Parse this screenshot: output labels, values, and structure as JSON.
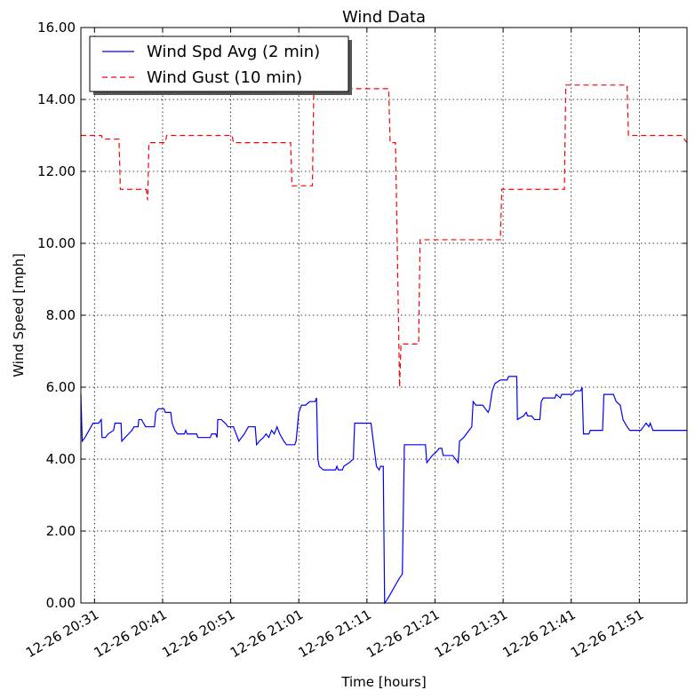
{
  "chart_data": {
    "type": "line",
    "title": "Wind Data",
    "xlabel": "Time [hours]",
    "ylabel": "Wind Speed [mph]",
    "ylim": [
      0,
      16
    ],
    "xlim_minutes": [
      0,
      89
    ],
    "grid": true,
    "legend_position": "upper-left",
    "y_ticks": [
      "0.00",
      "2.00",
      "4.00",
      "6.00",
      "8.00",
      "10.00",
      "12.00",
      "14.00",
      "16.00"
    ],
    "x_ticks": [
      {
        "label": "12-26 20:31",
        "minute": 2
      },
      {
        "label": "12-26 20:41",
        "minute": 12
      },
      {
        "label": "12-26 20:51",
        "minute": 22
      },
      {
        "label": "12-26 21:01",
        "minute": 32
      },
      {
        "label": "12-26 21:11",
        "minute": 42
      },
      {
        "label": "12-26 21:21",
        "minute": 52
      },
      {
        "label": "12-26 21:31",
        "minute": 62
      },
      {
        "label": "12-26 21:41",
        "minute": 72
      },
      {
        "label": "12-26 21:51",
        "minute": 82
      }
    ],
    "series": [
      {
        "name": "Wind Spd Avg (2 min)",
        "color": "#0000ff",
        "style": "solid",
        "points": [
          [
            0,
            5.8
          ],
          [
            0.2,
            4.5
          ],
          [
            0.6,
            4.6
          ],
          [
            1.2,
            4.8
          ],
          [
            1.8,
            5.0
          ],
          [
            2.6,
            5.0
          ],
          [
            3.0,
            5.1
          ],
          [
            3.1,
            4.6
          ],
          [
            3.6,
            4.6
          ],
          [
            4.0,
            4.7
          ],
          [
            4.8,
            4.8
          ],
          [
            5.0,
            5.0
          ],
          [
            5.9,
            5.0
          ],
          [
            6.0,
            4.5
          ],
          [
            6.5,
            4.6
          ],
          [
            7.0,
            4.7
          ],
          [
            7.5,
            4.8
          ],
          [
            7.8,
            4.9
          ],
          [
            8.4,
            4.9
          ],
          [
            8.5,
            5.1
          ],
          [
            8.9,
            5.1
          ],
          [
            9.2,
            5.0
          ],
          [
            9.5,
            4.9
          ],
          [
            10.8,
            4.9
          ],
          [
            11.0,
            5.3
          ],
          [
            11.4,
            5.4
          ],
          [
            12.2,
            5.4
          ],
          [
            12.4,
            5.3
          ],
          [
            13.2,
            5.3
          ],
          [
            13.4,
            5.0
          ],
          [
            13.8,
            4.8
          ],
          [
            14.2,
            4.7
          ],
          [
            15.2,
            4.7
          ],
          [
            15.4,
            4.8
          ],
          [
            15.6,
            4.7
          ],
          [
            17.0,
            4.7
          ],
          [
            17.2,
            4.6
          ],
          [
            19.0,
            4.6
          ],
          [
            19.2,
            4.7
          ],
          [
            19.8,
            4.7
          ],
          [
            20.0,
            4.6
          ],
          [
            20.1,
            5.1
          ],
          [
            20.6,
            5.1
          ],
          [
            21.2,
            5.0
          ],
          [
            21.6,
            4.9
          ],
          [
            22.4,
            4.9
          ],
          [
            22.8,
            4.7
          ],
          [
            23.2,
            4.5
          ],
          [
            23.6,
            4.6
          ],
          [
            24.0,
            4.7
          ],
          [
            24.6,
            4.9
          ],
          [
            25.6,
            4.9
          ],
          [
            25.8,
            4.4
          ],
          [
            26.2,
            4.5
          ],
          [
            26.8,
            4.6
          ],
          [
            27.2,
            4.7
          ],
          [
            27.6,
            4.6
          ],
          [
            28.0,
            4.8
          ],
          [
            28.4,
            4.7
          ],
          [
            28.8,
            4.9
          ],
          [
            29.2,
            4.7
          ],
          [
            29.8,
            4.5
          ],
          [
            30.2,
            4.4
          ],
          [
            31.4,
            4.4
          ],
          [
            31.6,
            4.5
          ],
          [
            31.8,
            4.9
          ],
          [
            32.0,
            5.3
          ],
          [
            32.4,
            5.5
          ],
          [
            33.0,
            5.5
          ],
          [
            33.6,
            5.6
          ],
          [
            34.4,
            5.6
          ],
          [
            34.6,
            5.7
          ],
          [
            34.8,
            4.0
          ],
          [
            35.0,
            3.8
          ],
          [
            35.6,
            3.7
          ],
          [
            37.4,
            3.7
          ],
          [
            37.6,
            3.8
          ],
          [
            37.8,
            3.7
          ],
          [
            38.4,
            3.7
          ],
          [
            38.6,
            3.8
          ],
          [
            39.4,
            3.9
          ],
          [
            40.0,
            4.0
          ],
          [
            40.2,
            5.0
          ],
          [
            42.6,
            5.0
          ],
          [
            43.0,
            4.4
          ],
          [
            43.4,
            3.8
          ],
          [
            43.8,
            3.7
          ],
          [
            44.0,
            3.8
          ],
          [
            44.4,
            3.8
          ],
          [
            44.6,
            0.0
          ],
          [
            45.0,
            0.1
          ],
          [
            45.6,
            0.3
          ],
          [
            46.2,
            0.5
          ],
          [
            46.8,
            0.7
          ],
          [
            47.2,
            0.8
          ],
          [
            47.5,
            4.4
          ],
          [
            50.6,
            4.4
          ],
          [
            50.8,
            3.9
          ],
          [
            51.2,
            4.0
          ],
          [
            51.6,
            4.1
          ],
          [
            52.2,
            4.2
          ],
          [
            52.6,
            4.3
          ],
          [
            53.0,
            4.3
          ],
          [
            53.2,
            4.1
          ],
          [
            54.6,
            4.1
          ],
          [
            55.0,
            4.0
          ],
          [
            55.4,
            3.9
          ],
          [
            55.6,
            4.5
          ],
          [
            56.2,
            4.6
          ],
          [
            56.6,
            4.7
          ],
          [
            57.0,
            4.8
          ],
          [
            57.4,
            4.9
          ],
          [
            57.6,
            5.6
          ],
          [
            58.0,
            5.5
          ],
          [
            59.0,
            5.5
          ],
          [
            59.4,
            5.4
          ],
          [
            59.8,
            5.3
          ],
          [
            60.0,
            5.4
          ],
          [
            60.4,
            5.9
          ],
          [
            60.8,
            6.1
          ],
          [
            61.6,
            6.2
          ],
          [
            62.6,
            6.2
          ],
          [
            62.8,
            6.3
          ],
          [
            64.0,
            6.3
          ],
          [
            64.1,
            5.1
          ],
          [
            65.0,
            5.2
          ],
          [
            65.4,
            5.3
          ],
          [
            65.6,
            5.2
          ],
          [
            66.2,
            5.2
          ],
          [
            66.6,
            5.1
          ],
          [
            67.4,
            5.1
          ],
          [
            67.6,
            5.6
          ],
          [
            67.9,
            5.7
          ],
          [
            69.6,
            5.7
          ],
          [
            69.8,
            5.8
          ],
          [
            70.4,
            5.7
          ],
          [
            70.6,
            5.8
          ],
          [
            72.2,
            5.8
          ],
          [
            72.6,
            5.9
          ],
          [
            73.4,
            5.9
          ],
          [
            73.6,
            6.0
          ],
          [
            73.8,
            4.7
          ],
          [
            74.6,
            4.7
          ],
          [
            74.8,
            4.8
          ],
          [
            76.6,
            4.8
          ],
          [
            76.8,
            5.8
          ],
          [
            78.2,
            5.8
          ],
          [
            78.6,
            5.6
          ],
          [
            79.2,
            5.5
          ],
          [
            79.6,
            5.1
          ],
          [
            80.2,
            4.9
          ],
          [
            80.6,
            4.8
          ],
          [
            82.2,
            4.8
          ],
          [
            82.6,
            4.9
          ],
          [
            83.0,
            5.0
          ],
          [
            83.4,
            4.9
          ],
          [
            83.6,
            5.0
          ],
          [
            83.8,
            4.9
          ],
          [
            84.0,
            4.8
          ],
          [
            89,
            4.8
          ]
        ]
      },
      {
        "name": "Wind Gust (10 min)",
        "color": "#ff0000",
        "style": "dashed",
        "points": [
          [
            0,
            13.0
          ],
          [
            3.0,
            13.0
          ],
          [
            3.2,
            12.9
          ],
          [
            5.6,
            12.9
          ],
          [
            5.8,
            11.5
          ],
          [
            9.6,
            11.5
          ],
          [
            9.8,
            11.2
          ],
          [
            10.0,
            12.8
          ],
          [
            12.4,
            12.8
          ],
          [
            12.6,
            13.0
          ],
          [
            22.2,
            13.0
          ],
          [
            22.4,
            12.8
          ],
          [
            30.8,
            12.8
          ],
          [
            31.0,
            11.6
          ],
          [
            34.0,
            11.6
          ],
          [
            34.2,
            14.3
          ],
          [
            45.2,
            14.3
          ],
          [
            45.4,
            12.8
          ],
          [
            46.2,
            12.8
          ],
          [
            46.8,
            6.0
          ],
          [
            47.0,
            7.2
          ],
          [
            49.6,
            7.2
          ],
          [
            49.8,
            10.1
          ],
          [
            61.6,
            10.1
          ],
          [
            61.8,
            11.5
          ],
          [
            71.0,
            11.5
          ],
          [
            71.2,
            14.4
          ],
          [
            80.2,
            14.4
          ],
          [
            80.4,
            13.0
          ],
          [
            88.2,
            13.0
          ],
          [
            88.6,
            12.9
          ],
          [
            89,
            12.8
          ]
        ]
      }
    ]
  }
}
